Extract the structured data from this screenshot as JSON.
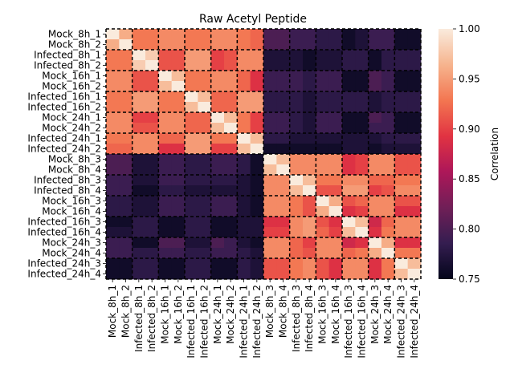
{
  "chart_data": {
    "type": "heatmap",
    "title": "Raw Acetyl Peptide",
    "labels": [
      "Mock_8h_1",
      "Mock_8h_2",
      "Infected_8h_1",
      "Infected_8h_2",
      "Mock_16h_1",
      "Mock_16h_2",
      "Infected_16h_1",
      "Infected_16h_2",
      "Mock_24h_1",
      "Mock_24h_2",
      "Infected_24h_1",
      "Infected_24h_2",
      "Mock_8h_3",
      "Mock_8h_4",
      "Infected_8h_3",
      "Infected_8h_4",
      "Mock_16h_3",
      "Mock_16h_4",
      "Infected_16h_3",
      "Infected_16h_4",
      "Mock_24h_3",
      "Mock_24h_4",
      "Infected_24h_3",
      "Infected_24h_4"
    ],
    "values": [
      [
        1.0,
        0.96,
        0.93,
        0.93,
        0.94,
        0.94,
        0.93,
        0.93,
        0.94,
        0.94,
        0.93,
        0.92,
        0.8,
        0.8,
        0.79,
        0.79,
        0.78,
        0.78,
        0.76,
        0.77,
        0.79,
        0.79,
        0.76,
        0.76
      ],
      [
        0.96,
        1.0,
        0.93,
        0.93,
        0.94,
        0.94,
        0.93,
        0.93,
        0.94,
        0.94,
        0.93,
        0.92,
        0.8,
        0.8,
        0.79,
        0.79,
        0.78,
        0.78,
        0.76,
        0.77,
        0.79,
        0.79,
        0.76,
        0.76
      ],
      [
        0.93,
        0.93,
        1.0,
        0.98,
        0.91,
        0.91,
        0.95,
        0.95,
        0.9,
        0.91,
        0.94,
        0.94,
        0.77,
        0.77,
        0.77,
        0.76,
        0.77,
        0.77,
        0.78,
        0.78,
        0.76,
        0.78,
        0.78,
        0.78
      ],
      [
        0.93,
        0.93,
        0.98,
        1.0,
        0.91,
        0.91,
        0.95,
        0.95,
        0.9,
        0.91,
        0.94,
        0.94,
        0.77,
        0.77,
        0.77,
        0.76,
        0.77,
        0.77,
        0.78,
        0.78,
        0.76,
        0.78,
        0.78,
        0.78
      ],
      [
        0.94,
        0.94,
        0.91,
        0.91,
        1.0,
        0.97,
        0.93,
        0.93,
        0.94,
        0.94,
        0.92,
        0.89,
        0.79,
        0.79,
        0.79,
        0.78,
        0.79,
        0.79,
        0.76,
        0.76,
        0.8,
        0.79,
        0.76,
        0.76
      ],
      [
        0.94,
        0.94,
        0.91,
        0.91,
        0.97,
        1.0,
        0.93,
        0.93,
        0.94,
        0.94,
        0.92,
        0.89,
        0.79,
        0.79,
        0.79,
        0.78,
        0.79,
        0.79,
        0.76,
        0.76,
        0.8,
        0.79,
        0.76,
        0.76
      ],
      [
        0.93,
        0.93,
        0.95,
        0.95,
        0.93,
        0.93,
        1.0,
        0.97,
        0.92,
        0.92,
        0.95,
        0.95,
        0.78,
        0.78,
        0.78,
        0.77,
        0.78,
        0.78,
        0.78,
        0.78,
        0.77,
        0.78,
        0.78,
        0.78
      ],
      [
        0.93,
        0.93,
        0.95,
        0.95,
        0.93,
        0.93,
        0.97,
        1.0,
        0.92,
        0.92,
        0.95,
        0.95,
        0.78,
        0.78,
        0.78,
        0.77,
        0.78,
        0.78,
        0.78,
        0.78,
        0.77,
        0.78,
        0.78,
        0.78
      ],
      [
        0.94,
        0.94,
        0.9,
        0.9,
        0.94,
        0.94,
        0.92,
        0.92,
        1.0,
        0.97,
        0.93,
        0.9,
        0.79,
        0.79,
        0.78,
        0.77,
        0.79,
        0.79,
        0.76,
        0.76,
        0.8,
        0.79,
        0.76,
        0.76
      ],
      [
        0.94,
        0.94,
        0.91,
        0.91,
        0.94,
        0.94,
        0.92,
        0.92,
        0.97,
        1.0,
        0.93,
        0.9,
        0.79,
        0.79,
        0.78,
        0.77,
        0.79,
        0.79,
        0.76,
        0.76,
        0.79,
        0.79,
        0.76,
        0.76
      ],
      [
        0.93,
        0.93,
        0.94,
        0.94,
        0.92,
        0.92,
        0.95,
        0.95,
        0.93,
        0.93,
        1.0,
        0.97,
        0.78,
        0.78,
        0.77,
        0.77,
        0.77,
        0.77,
        0.77,
        0.77,
        0.77,
        0.78,
        0.78,
        0.78
      ],
      [
        0.92,
        0.92,
        0.94,
        0.94,
        0.89,
        0.89,
        0.95,
        0.95,
        0.9,
        0.9,
        0.97,
        1.0,
        0.76,
        0.76,
        0.76,
        0.76,
        0.76,
        0.76,
        0.77,
        0.77,
        0.76,
        0.77,
        0.77,
        0.77
      ],
      [
        0.8,
        0.8,
        0.77,
        0.77,
        0.79,
        0.79,
        0.78,
        0.78,
        0.79,
        0.79,
        0.78,
        0.76,
        1.0,
        0.97,
        0.94,
        0.94,
        0.94,
        0.94,
        0.89,
        0.9,
        0.94,
        0.94,
        0.91,
        0.91
      ],
      [
        0.8,
        0.8,
        0.77,
        0.77,
        0.79,
        0.79,
        0.78,
        0.78,
        0.79,
        0.79,
        0.78,
        0.76,
        0.97,
        1.0,
        0.94,
        0.94,
        0.94,
        0.94,
        0.89,
        0.9,
        0.94,
        0.94,
        0.91,
        0.91
      ],
      [
        0.79,
        0.79,
        0.77,
        0.77,
        0.79,
        0.79,
        0.78,
        0.78,
        0.78,
        0.78,
        0.77,
        0.76,
        0.94,
        0.94,
        1.0,
        0.97,
        0.93,
        0.93,
        0.94,
        0.94,
        0.92,
        0.92,
        0.93,
        0.93
      ],
      [
        0.79,
        0.79,
        0.76,
        0.76,
        0.78,
        0.78,
        0.77,
        0.77,
        0.77,
        0.77,
        0.77,
        0.76,
        0.94,
        0.94,
        0.97,
        1.0,
        0.91,
        0.91,
        0.95,
        0.95,
        0.9,
        0.91,
        0.94,
        0.94
      ],
      [
        0.78,
        0.78,
        0.77,
        0.77,
        0.79,
        0.79,
        0.78,
        0.78,
        0.79,
        0.79,
        0.77,
        0.76,
        0.94,
        0.94,
        0.93,
        0.91,
        1.0,
        0.96,
        0.91,
        0.92,
        0.94,
        0.94,
        0.91,
        0.91
      ],
      [
        0.78,
        0.78,
        0.77,
        0.77,
        0.79,
        0.79,
        0.78,
        0.78,
        0.79,
        0.79,
        0.77,
        0.76,
        0.94,
        0.94,
        0.93,
        0.91,
        0.96,
        1.0,
        0.89,
        0.9,
        0.94,
        0.94,
        0.89,
        0.89
      ],
      [
        0.76,
        0.76,
        0.78,
        0.78,
        0.76,
        0.76,
        0.78,
        0.78,
        0.76,
        0.76,
        0.77,
        0.77,
        0.89,
        0.89,
        0.94,
        0.95,
        0.91,
        0.89,
        1.0,
        0.97,
        0.88,
        0.92,
        0.94,
        0.94
      ],
      [
        0.77,
        0.77,
        0.78,
        0.78,
        0.76,
        0.76,
        0.78,
        0.78,
        0.76,
        0.76,
        0.77,
        0.77,
        0.9,
        0.9,
        0.94,
        0.95,
        0.92,
        0.9,
        0.97,
        1.0,
        0.89,
        0.93,
        0.94,
        0.94
      ],
      [
        0.79,
        0.79,
        0.76,
        0.76,
        0.8,
        0.8,
        0.77,
        0.77,
        0.8,
        0.79,
        0.77,
        0.76,
        0.94,
        0.94,
        0.92,
        0.9,
        0.94,
        0.94,
        0.88,
        0.89,
        1.0,
        0.96,
        0.89,
        0.89
      ],
      [
        0.79,
        0.79,
        0.78,
        0.78,
        0.79,
        0.79,
        0.78,
        0.78,
        0.79,
        0.79,
        0.78,
        0.77,
        0.94,
        0.94,
        0.92,
        0.91,
        0.94,
        0.94,
        0.92,
        0.93,
        0.96,
        1.0,
        0.93,
        0.93
      ],
      [
        0.76,
        0.76,
        0.78,
        0.78,
        0.76,
        0.76,
        0.78,
        0.78,
        0.76,
        0.76,
        0.78,
        0.77,
        0.91,
        0.91,
        0.93,
        0.94,
        0.91,
        0.89,
        0.94,
        0.94,
        0.89,
        0.93,
        1.0,
        0.97
      ],
      [
        0.76,
        0.76,
        0.78,
        0.78,
        0.76,
        0.76,
        0.78,
        0.78,
        0.76,
        0.76,
        0.78,
        0.77,
        0.91,
        0.91,
        0.93,
        0.94,
        0.91,
        0.89,
        0.94,
        0.94,
        0.89,
        0.93,
        0.97,
        1.0
      ]
    ],
    "colorbar": {
      "label": "Correlation",
      "min": 0.75,
      "max": 1.0,
      "ticks": [
        "0.75",
        "0.80",
        "0.85",
        "0.90",
        "0.95",
        "1.00"
      ],
      "colormap": "rocket",
      "colormap_stops": [
        "#03051a",
        "#341d50",
        "#701f57",
        "#ad1759",
        "#e13342",
        "#f37651",
        "#f6b48e",
        "#faebdd"
      ]
    },
    "grid_lines": {
      "style": "dashed",
      "color": "#000000",
      "block_size": 2
    }
  }
}
